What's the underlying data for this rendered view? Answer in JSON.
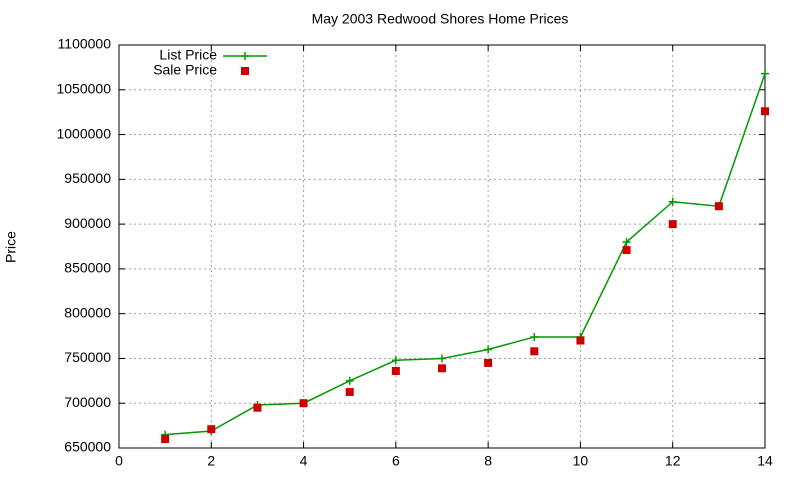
{
  "chart_data": {
    "type": "line",
    "title": "May 2003 Redwood Shores Home Prices",
    "y_label": "Price",
    "x": [
      1,
      2,
      3,
      4,
      5,
      6,
      7,
      8,
      9,
      10,
      11,
      12,
      13,
      14
    ],
    "series": [
      {
        "name": "List Price",
        "color": "#009900",
        "mode": "lines+plus",
        "values": [
          665000,
          669000,
          698000,
          700000,
          725000,
          748000,
          750000,
          760000,
          774000,
          774000,
          880000,
          925000,
          920000,
          1068000
        ]
      },
      {
        "name": "Sale Price",
        "color": "#cc0000",
        "mode": "squares",
        "values": [
          660000,
          671000,
          695000,
          700000,
          712500,
          736000,
          739000,
          745000,
          758000,
          770000,
          871000,
          900000,
          920000,
          1026000
        ]
      }
    ],
    "xlim": [
      0,
      14
    ],
    "xticks": [
      0,
      2,
      4,
      6,
      8,
      10,
      12,
      14
    ],
    "ylim": [
      650000,
      1100000
    ],
    "yticks": [
      650000,
      700000,
      750000,
      800000,
      850000,
      900000,
      950000,
      1000000,
      1050000,
      1100000
    ],
    "grid": true,
    "legend": "top-left"
  }
}
